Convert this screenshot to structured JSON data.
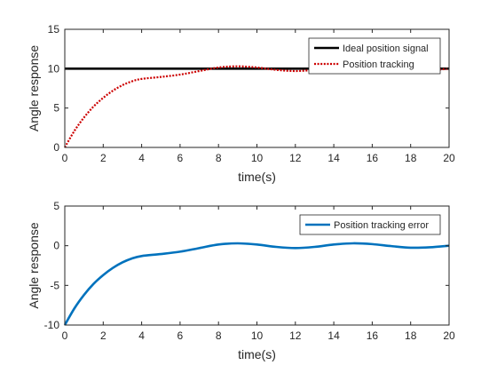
{
  "chart_data": [
    {
      "type": "line",
      "xlabel": "time(s)",
      "ylabel": "Angle response",
      "xlim": [
        0,
        20
      ],
      "ylim": [
        0,
        15
      ],
      "xticks": [
        0,
        2,
        4,
        6,
        8,
        10,
        12,
        14,
        16,
        18,
        20
      ],
      "yticks": [
        0,
        5,
        10,
        15
      ],
      "xtick_labels": [
        "0",
        "2",
        "4",
        "6",
        "8",
        "10",
        "12",
        "14",
        "16",
        "18",
        "20"
      ],
      "ytick_labels": [
        "0",
        "5",
        "10",
        "15"
      ],
      "grid": false,
      "legend_position": "top-right",
      "series": [
        {
          "name": "Ideal position signal",
          "color": "#000000",
          "line_style": "solid",
          "x": [
            0,
            20
          ],
          "y": [
            10,
            10
          ]
        },
        {
          "name": "Position tracking",
          "color": "#cc0000",
          "line_style": "dotted",
          "x": [
            0,
            0.5,
            1,
            1.5,
            2,
            2.5,
            3,
            3.5,
            4,
            5,
            6,
            7,
            8,
            9,
            10,
            11,
            12,
            13,
            14,
            15,
            16,
            17,
            18,
            19,
            20
          ],
          "y": [
            0,
            2.1,
            3.8,
            5.2,
            6.3,
            7.2,
            7.9,
            8.4,
            8.7,
            8.95,
            9.25,
            9.7,
            10.15,
            10.3,
            10.15,
            9.85,
            9.7,
            9.85,
            10.15,
            10.3,
            10.2,
            9.95,
            9.75,
            9.8,
            10.0
          ]
        }
      ]
    },
    {
      "type": "line",
      "xlabel": "time(s)",
      "ylabel": "Angle response",
      "xlim": [
        0,
        20
      ],
      "ylim": [
        -10,
        5
      ],
      "xticks": [
        0,
        2,
        4,
        6,
        8,
        10,
        12,
        14,
        16,
        18,
        20
      ],
      "yticks": [
        -10,
        -5,
        0,
        5
      ],
      "xtick_labels": [
        "0",
        "2",
        "4",
        "6",
        "8",
        "10",
        "12",
        "14",
        "16",
        "18",
        "20"
      ],
      "ytick_labels": [
        "-10",
        "-5",
        "0",
        "5"
      ],
      "grid": false,
      "legend_position": "top-right",
      "series": [
        {
          "name": "Position tracking error",
          "color": "#0072bd",
          "line_style": "solid",
          "x": [
            0,
            0.5,
            1,
            1.5,
            2,
            2.5,
            3,
            3.5,
            4,
            5,
            6,
            7,
            8,
            9,
            10,
            11,
            12,
            13,
            14,
            15,
            16,
            17,
            18,
            19,
            20
          ],
          "y": [
            -10,
            -7.9,
            -6.2,
            -4.8,
            -3.7,
            -2.8,
            -2.1,
            -1.6,
            -1.3,
            -1.05,
            -0.75,
            -0.3,
            0.15,
            0.3,
            0.15,
            -0.15,
            -0.3,
            -0.15,
            0.15,
            0.3,
            0.2,
            -0.05,
            -0.25,
            -0.2,
            0.0
          ]
        }
      ]
    }
  ]
}
